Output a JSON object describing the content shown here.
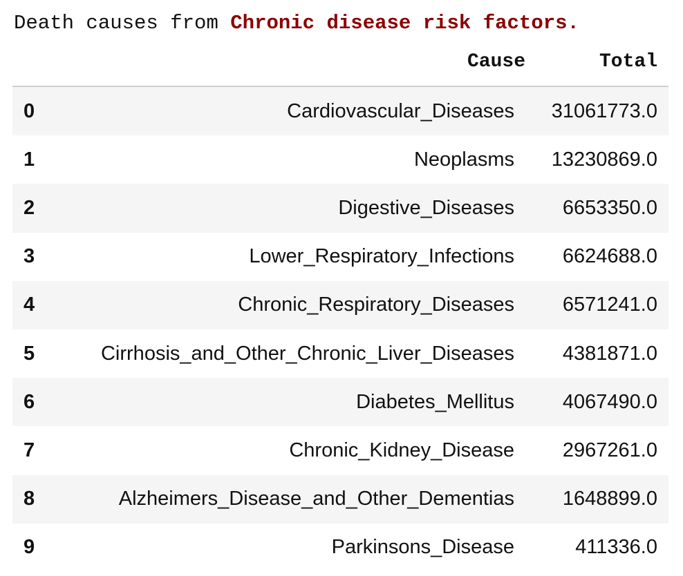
{
  "caption": {
    "prefix": "Death causes from ",
    "highlight": "Chronic disease risk factors."
  },
  "table": {
    "columns": [
      "Cause",
      "Total"
    ],
    "rows": [
      {
        "index": "0",
        "cause": "Cardiovascular_Diseases",
        "total": "31061773.0"
      },
      {
        "index": "1",
        "cause": "Neoplasms",
        "total": "13230869.0"
      },
      {
        "index": "2",
        "cause": "Digestive_Diseases",
        "total": "6653350.0"
      },
      {
        "index": "3",
        "cause": "Lower_Respiratory_Infections",
        "total": "6624688.0"
      },
      {
        "index": "4",
        "cause": "Chronic_Respiratory_Diseases",
        "total": "6571241.0"
      },
      {
        "index": "5",
        "cause": "Cirrhosis_and_Other_Chronic_Liver_Diseases",
        "total": "4381871.0"
      },
      {
        "index": "6",
        "cause": "Diabetes_Mellitus",
        "total": "4067490.0"
      },
      {
        "index": "7",
        "cause": "Chronic_Kidney_Disease",
        "total": "2967261.0"
      },
      {
        "index": "8",
        "cause": "Alzheimers_Disease_and_Other_Dementias",
        "total": "1648899.0"
      },
      {
        "index": "9",
        "cause": "Parkinsons_Disease",
        "total": "411336.0"
      }
    ]
  },
  "colors": {
    "highlight": "#8b0000",
    "stripe": "#f5f5f5",
    "header_rule": "#cfcfcf"
  }
}
